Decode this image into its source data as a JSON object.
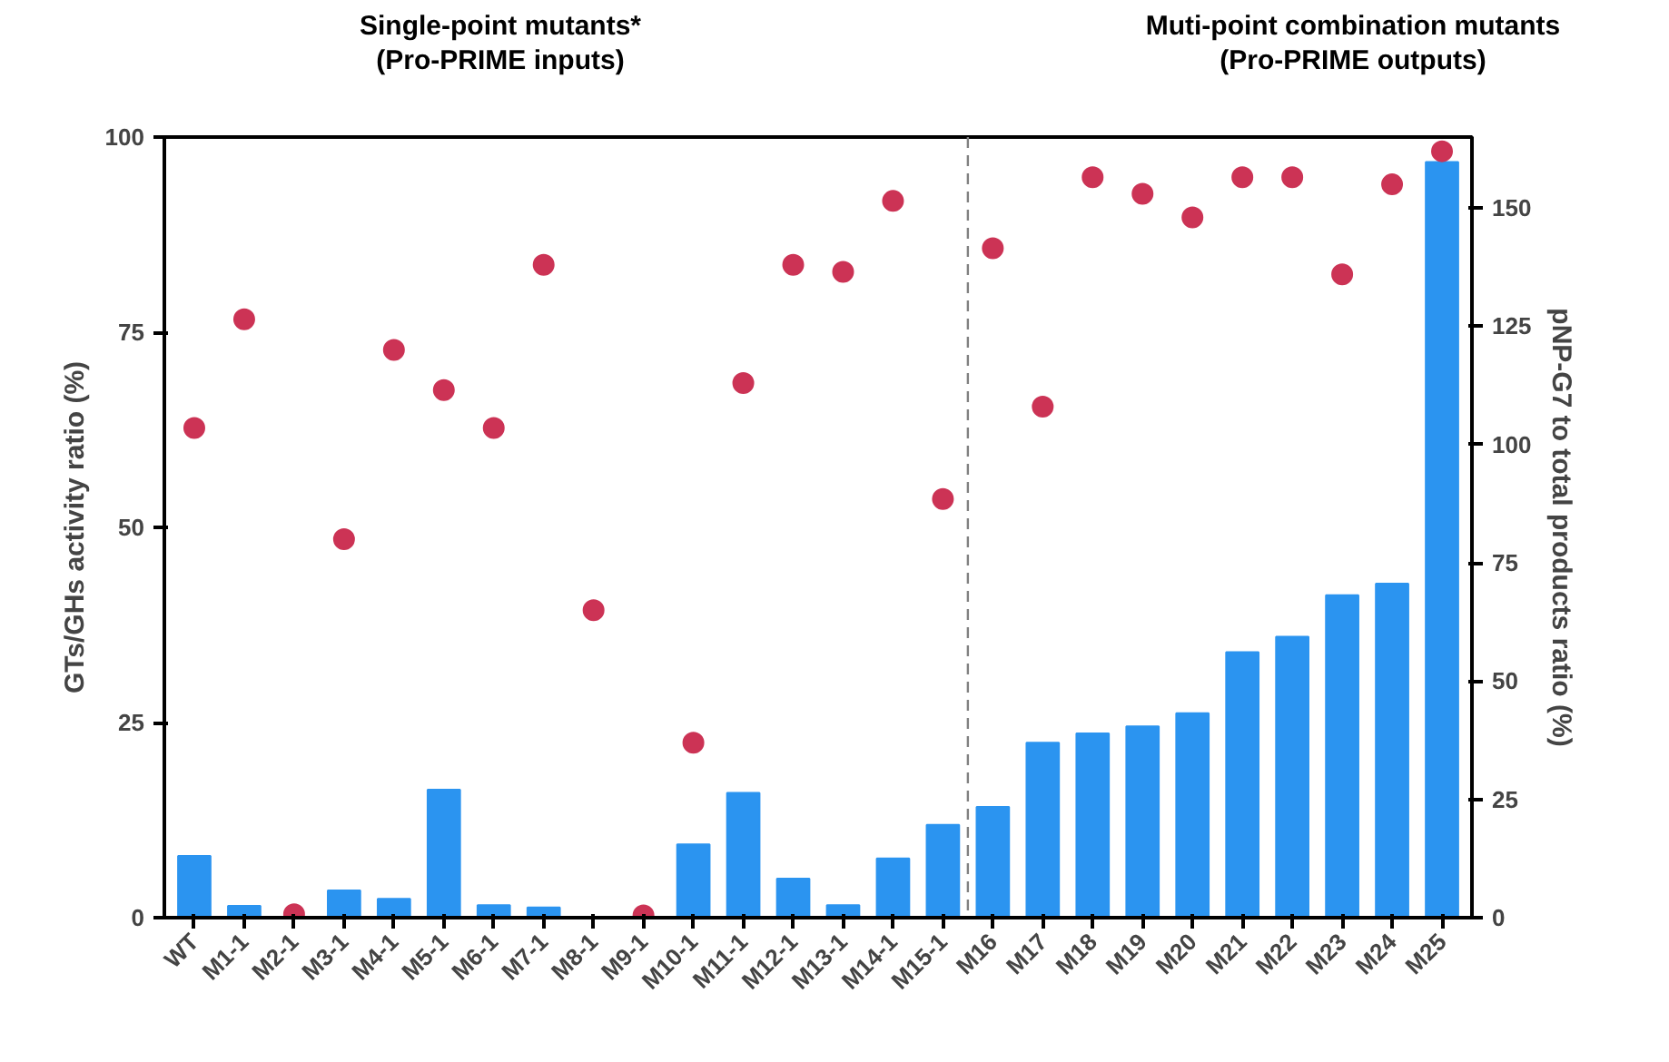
{
  "chart_data": {
    "type": "bar",
    "annotations": [
      "Single-point mutants*\n(Pro-PRIME inputs)",
      "Muti-point combination mutants\n(Pro-PRIME outputs)"
    ],
    "categories": [
      "WT",
      "M1-1",
      "M2-1",
      "M3-1",
      "M4-1",
      "M5-1",
      "M6-1",
      "M7-1",
      "M8-1",
      "M9-1",
      "M10-1",
      "M11-1",
      "M12-1",
      "M13-1",
      "M14-1",
      "M15-1",
      "M16",
      "M17",
      "M18",
      "M19",
      "M20",
      "M21",
      "M22",
      "M23",
      "M24",
      "M25"
    ],
    "ylabel": "GTs/GHs activity ratio (%)",
    "y2label": "pNP-G7 to total products ratio (%)",
    "series": [
      {
        "color": "#2b94f0",
        "values": [
          7.9,
          1.5,
          null,
          3.5,
          2.4,
          16.4,
          1.6,
          1.3,
          0,
          null,
          9.4,
          16,
          5,
          1.6,
          7.6,
          11.9,
          14.2,
          22.4,
          23.6,
          24.5,
          26.2,
          34,
          36,
          41.3,
          42.8,
          96.8
        ]
      },
      {
        "type": "scatter",
        "axis": "y2",
        "color": "#cc3355",
        "values": [
          103.5,
          126.5,
          0.7,
          80,
          120,
          111.5,
          103.5,
          138,
          65,
          0.5,
          37,
          113,
          138,
          136.5,
          151.5,
          88.5,
          141.5,
          108,
          156.5,
          153,
          148,
          156.5,
          156.5,
          136,
          155,
          162
        ]
      }
    ],
    "ylim": [
      0,
      100
    ],
    "yticks": [
      0,
      25,
      50,
      75,
      100
    ],
    "y2lim": [
      0,
      165
    ],
    "y2ticks": [
      0,
      25,
      50,
      75,
      100,
      125,
      150
    ],
    "grid": false,
    "marker": "circle"
  }
}
